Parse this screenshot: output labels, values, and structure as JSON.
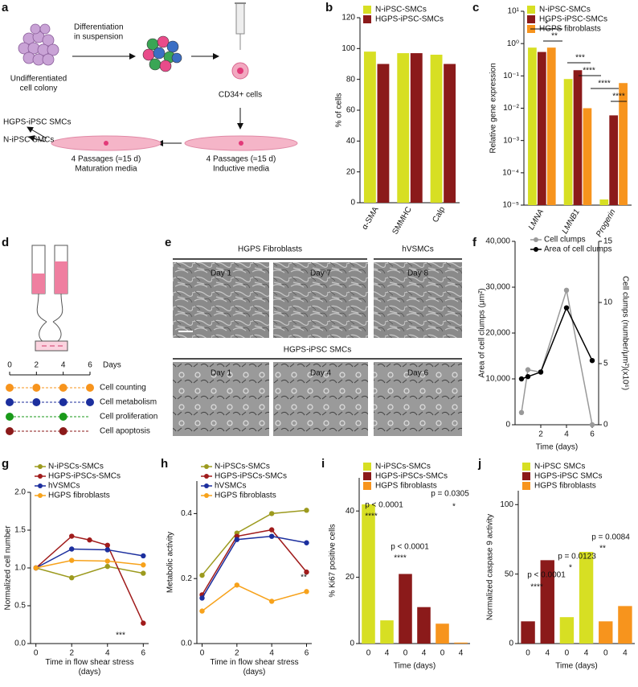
{
  "panel_a": {
    "label": "a",
    "colony": [
      "Undifferentiated",
      "cell colony"
    ],
    "step": [
      "Differentiation",
      "in suspension"
    ],
    "cd34": "CD34+ cells",
    "inductive": [
      "4 Passages (≈15 d)",
      "Inductive media"
    ],
    "maturation": [
      "4 Passages (≈15 d)",
      "Maturation media"
    ],
    "outputs": [
      "HGPS-iPSC SMCs",
      "N-iPSC SMCs"
    ]
  },
  "panel_d": {
    "label": "d",
    "days": [
      0,
      2,
      4,
      6
    ],
    "days_label": "Days",
    "assays": [
      {
        "name": "Cell counting",
        "color": "#f7941d",
        "days": [
          0,
          2,
          4,
          6
        ]
      },
      {
        "name": "Cell metabolism",
        "color": "#1c2f9e",
        "days": [
          0,
          2,
          4,
          6
        ]
      },
      {
        "name": "Cell proliferation",
        "color": "#1a9a1a",
        "days": [
          0,
          4
        ]
      },
      {
        "name": "Cell apoptosis",
        "color": "#8b1a1a",
        "days": [
          0,
          4
        ]
      }
    ]
  },
  "panel_e": {
    "label": "e",
    "groups": [
      "HGPS Fibroblasts",
      "hVSMCs",
      "HGPS-iPSC SMCs"
    ],
    "top_days": [
      "Day 1",
      "Day 7",
      "Day 8"
    ],
    "bottom_days": [
      "Day 1",
      "Day 4",
      "Day 6"
    ]
  },
  "chart_data": [
    {
      "label": "b",
      "type": "bar",
      "ylabel": "% of cells",
      "categories": [
        "α-SMA",
        "SMMHC",
        "Calp"
      ],
      "series": [
        {
          "name": "N-iPSC-SMCs",
          "color": "#d7df23",
          "values": [
            98,
            97,
            96
          ]
        },
        {
          "name": "HGPS-iPSC-SMCs",
          "color": "#8b1a1a",
          "values": [
            90,
            97,
            90
          ]
        }
      ],
      "ylim": [
        0,
        120
      ],
      "yticks": [
        0,
        20,
        40,
        60,
        80,
        100,
        120
      ]
    },
    {
      "label": "c",
      "type": "bar",
      "yscale": "log",
      "ylabel": "Relative gene expression",
      "categories": [
        "LMNA",
        "LMNB1",
        "Progerin"
      ],
      "series": [
        {
          "name": "N-iPSC-SMCs",
          "color": "#d7df23",
          "values": [
            0.75,
            0.08,
            1.5e-05
          ]
        },
        {
          "name": "HGPS-iPSC-SMCs",
          "color": "#8b1a1a",
          "values": [
            0.55,
            0.15,
            0.006
          ]
        },
        {
          "name": "HGPS fibroblasts",
          "color": "#f7941d",
          "values": [
            0.75,
            0.01,
            0.06
          ]
        }
      ],
      "ylim": [
        1e-05,
        10
      ],
      "yticks": [
        {
          "value": 10,
          "label": "10¹"
        },
        {
          "value": 1,
          "label": "10⁰"
        },
        {
          "value": 0.1,
          "label": "10⁻¹"
        },
        {
          "value": 0.01,
          "label": "10⁻²"
        },
        {
          "value": 0.001,
          "label": "10⁻³"
        },
        {
          "value": 0.0001,
          "label": "10⁻⁴"
        },
        {
          "value": 1e-05,
          "label": "10⁻⁵"
        }
      ],
      "annotations": [
        "*",
        "**",
        "***",
        "****",
        "****",
        "****"
      ]
    },
    {
      "label": "f",
      "type": "line",
      "xlabel": "Time (days)",
      "ylabel": "Area of cell clumps (μm²)",
      "y2label": "Cell clumps (number/μm²)(x10⁶)",
      "x": [
        0.5,
        1,
        2,
        4,
        6
      ],
      "xlim": [
        0,
        6.5
      ],
      "xticks": [
        2,
        4,
        6
      ],
      "series": [
        {
          "name": "Cell clumps",
          "color": "#999999",
          "axis": "y2",
          "values": [
            1,
            4.5,
            4.3,
            11,
            0
          ]
        },
        {
          "name": "Area of cell clumps",
          "color": "#000000",
          "values": [
            10000,
            10500,
            11500,
            25500,
            14000
          ]
        }
      ],
      "ylim": [
        0,
        40000
      ],
      "yticks": [
        0,
        {
          "value": 10000,
          "label": "10,000"
        },
        {
          "value": 20000,
          "label": "20,000"
        },
        {
          "value": 30000,
          "label": "30,000"
        },
        {
          "value": 40000,
          "label": "40,000"
        }
      ],
      "y2lim": [
        0,
        15
      ],
      "y2ticks": [
        0,
        5,
        10,
        15
      ]
    },
    {
      "label": "g",
      "type": "line",
      "xlabel": "Time in flow shear stress (days)",
      "ylabel": "Normalized cell number",
      "xlim": [
        -0.3,
        6.3
      ],
      "xticks": [
        0,
        2,
        4,
        6
      ],
      "series": [
        {
          "name": "N-iPSCs-SMCs",
          "color": "#9c9a1e",
          "x": [
            0,
            2,
            4,
            6
          ],
          "values": [
            1.0,
            0.87,
            1.02,
            0.93
          ]
        },
        {
          "name": "HGPS-iPSCs-SMCs",
          "color": "#a01b1b",
          "x": [
            0,
            2,
            3,
            4,
            6
          ],
          "values": [
            1.0,
            1.42,
            1.37,
            1.3,
            0.27
          ]
        },
        {
          "name": "hVSMCs",
          "color": "#1c2f9e",
          "x": [
            0,
            2,
            4,
            6
          ],
          "values": [
            1.0,
            1.25,
            1.24,
            1.16
          ]
        },
        {
          "name": "HGPS fibroblasts",
          "color": "#f7a21b",
          "x": [
            0,
            2,
            4,
            6
          ],
          "values": [
            1.0,
            1.1,
            1.09,
            1.04
          ]
        }
      ],
      "ylim": [
        0,
        2
      ],
      "yticks": [
        {
          "value": 0,
          "label": "0.0"
        },
        0.5,
        {
          "value": 1,
          "label": "1.0"
        },
        1.5,
        {
          "value": 2,
          "label": "2.0"
        }
      ],
      "annotations": [
        "***"
      ]
    },
    {
      "label": "h",
      "type": "line",
      "xlabel": "Time in flow shear stress (days)",
      "ylabel": "Metabolic activity",
      "xlim": [
        -0.3,
        6.3
      ],
      "xticks": [
        0,
        2,
        4,
        6
      ],
      "x": [
        0,
        2,
        4,
        6
      ],
      "series": [
        {
          "name": "N-iPSCs-SMCs",
          "color": "#9c9a1e",
          "values": [
            0.21,
            0.34,
            0.4,
            0.41
          ]
        },
        {
          "name": "HGPS-iPSCs-SMCs",
          "color": "#a01b1b",
          "values": [
            0.15,
            0.33,
            0.35,
            0.22
          ]
        },
        {
          "name": "hVSMCs",
          "color": "#1c2f9e",
          "values": [
            0.14,
            0.32,
            0.33,
            0.31
          ]
        },
        {
          "name": "HGPS fibroblasts",
          "color": "#f7a21b",
          "values": [
            0.1,
            0.18,
            0.13,
            0.16
          ]
        }
      ],
      "ylim": [
        0,
        0.5
      ],
      "yticks": [
        {
          "value": 0,
          "label": "0.0"
        },
        0.2,
        0.4
      ],
      "annotations": [
        "**"
      ]
    },
    {
      "label": "i",
      "type": "bar",
      "xlabel": "Time (days)",
      "ylabel": "% Ki67 positive cells",
      "categories": [
        "0",
        "4",
        "0",
        "4",
        "0",
        "4"
      ],
      "series": [
        {
          "name": "N-iPSCs-SMCs",
          "color": "#d7df23",
          "values": [
            42,
            7,
            null,
            null,
            null,
            null
          ]
        },
        {
          "name": "HGPS-iPSCs-SMCs",
          "color": "#8b1a1a",
          "values": [
            null,
            null,
            21,
            11,
            null,
            null
          ]
        },
        {
          "name": "HGPS fibroblasts",
          "color": "#f7941d",
          "values": [
            null,
            null,
            null,
            null,
            6,
            0.3
          ]
        }
      ],
      "ylim": [
        0,
        50
      ],
      "yticks": [
        0,
        20,
        40
      ],
      "annotations": [
        "p < 0.0001",
        "****",
        "p < 0.0001",
        "****",
        "p = 0.0305",
        "*"
      ]
    },
    {
      "label": "j",
      "type": "bar",
      "xlabel": "Time (days)",
      "ylabel": "Normalized caspase 9 activity",
      "categories": [
        "0",
        "4",
        "0",
        "4",
        "0",
        "4"
      ],
      "series": [
        {
          "name": "N-iPSC SMCs",
          "color": "#d7df23",
          "values": [
            null,
            null,
            19,
            66,
            null,
            null
          ]
        },
        {
          "name": "HGPS-iPSC SMCs",
          "color": "#8b1a1a",
          "values": [
            16,
            60,
            null,
            null,
            null,
            null
          ]
        },
        {
          "name": "HGPS fibroblasts",
          "color": "#f7941d",
          "values": [
            null,
            null,
            null,
            null,
            16,
            27
          ]
        }
      ],
      "ylim": [
        0,
        110
      ],
      "yticks": [
        0,
        50,
        100
      ],
      "annotations": [
        "p < 0.0001",
        "****",
        "p = 0.0123",
        "*",
        "p = 0.0084",
        "**"
      ]
    }
  ]
}
